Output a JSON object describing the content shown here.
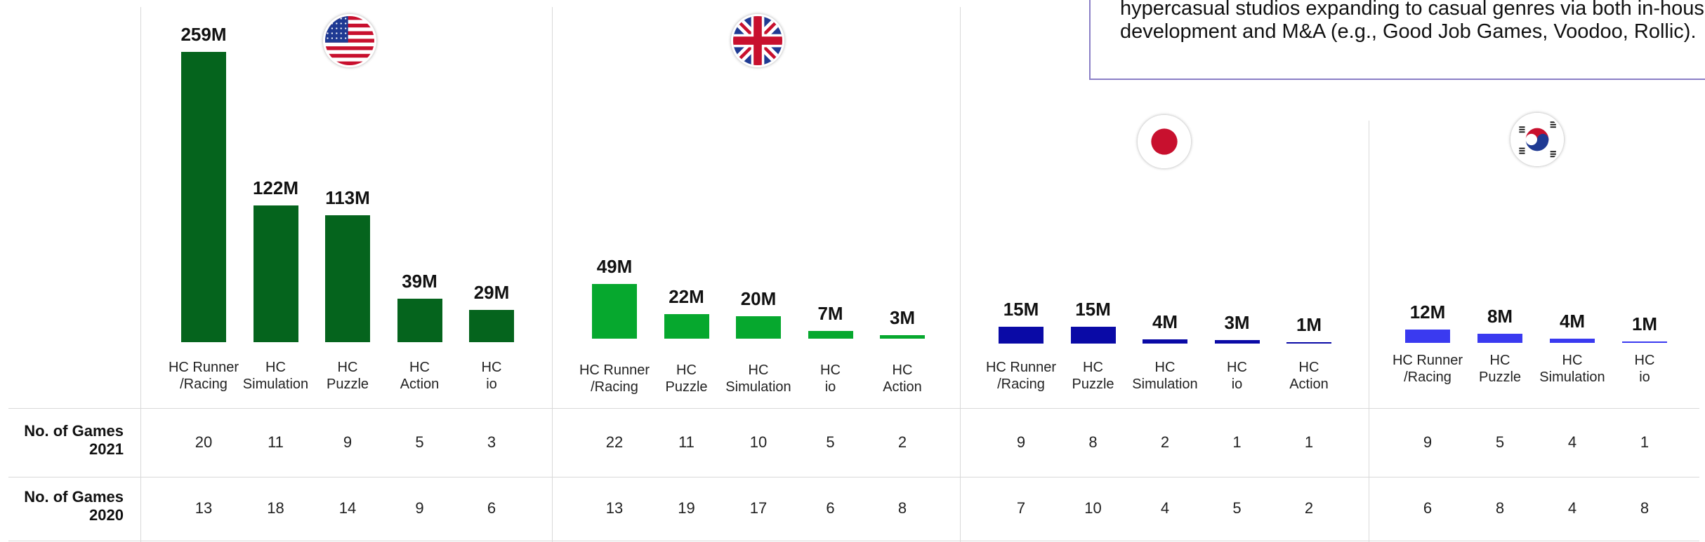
{
  "callout": {
    "text": "hypercasual studios expanding to casual genres via both in-house development and M&A (e.g., Good Job Games, Voodoo, Rollic)."
  },
  "row_labels": {
    "games_2021": "No. of Games\n2021",
    "games_2020": "No. of Games\n2020"
  },
  "chart_data": [
    {
      "type": "bar",
      "country_flag": "us-flag-icon",
      "color": "#05641d",
      "categories": [
        "HC Runner\n/Racing",
        "HC\nSimulation",
        "HC\nPuzzle",
        "HC\nAction",
        "HC\nio"
      ],
      "value_labels": [
        "259M",
        "122M",
        "113M",
        "39M",
        "29M"
      ],
      "values": [
        259,
        122,
        113,
        39,
        29
      ],
      "games_2021": [
        "20",
        "11",
        "9",
        "5",
        "3"
      ],
      "games_2020": [
        "13",
        "18",
        "14",
        "9",
        "6"
      ]
    },
    {
      "type": "bar",
      "country_flag": "uk-flag-icon",
      "color": "#06a82e",
      "categories": [
        "HC Runner\n/Racing",
        "HC\nPuzzle",
        "HC\nSimulation",
        "HC\nio",
        "HC\nAction"
      ],
      "value_labels": [
        "49M",
        "22M",
        "20M",
        "7M",
        "3M"
      ],
      "values": [
        49,
        22,
        20,
        7,
        3
      ],
      "games_2021": [
        "22",
        "11",
        "10",
        "5",
        "2"
      ],
      "games_2020": [
        "13",
        "19",
        "17",
        "6",
        "8"
      ]
    },
    {
      "type": "bar",
      "country_flag": "japan-flag-icon",
      "color": "#0a0aa6",
      "categories": [
        "HC Runner\n/Racing",
        "HC\nPuzzle",
        "HC\nSimulation",
        "HC\nio",
        "HC\nAction"
      ],
      "value_labels": [
        "15M",
        "15M",
        "4M",
        "3M",
        "1M"
      ],
      "values": [
        15,
        15,
        4,
        3,
        1
      ],
      "games_2021": [
        "9",
        "8",
        "2",
        "1",
        "1"
      ],
      "games_2020": [
        "7",
        "10",
        "4",
        "5",
        "2"
      ]
    },
    {
      "type": "bar",
      "country_flag": "korea-flag-icon",
      "color": "#3a3af0",
      "categories": [
        "HC Runner\n/Racing",
        "HC\nPuzzle",
        "HC\nSimulation",
        "HC\nio"
      ],
      "value_labels": [
        "12M",
        "8M",
        "4M",
        "1M"
      ],
      "values": [
        12,
        8,
        4,
        1
      ],
      "games_2021": [
        "9",
        "5",
        "4",
        "1"
      ],
      "games_2020": [
        "6",
        "8",
        "4",
        "8"
      ]
    }
  ]
}
